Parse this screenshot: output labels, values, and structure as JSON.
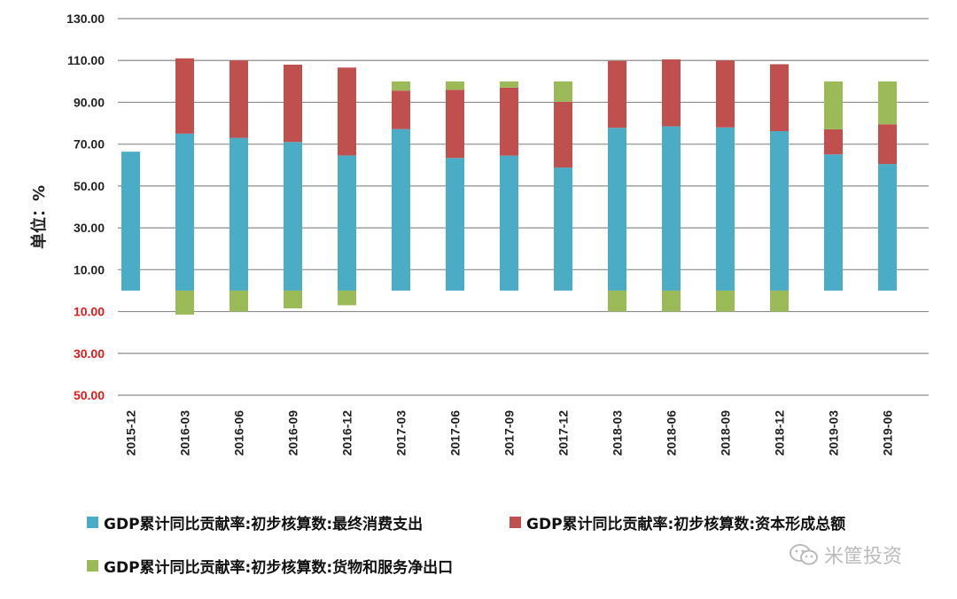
{
  "chart_data": {
    "type": "bar",
    "stacked": true,
    "categories": [
      "2015-12",
      "2016-03",
      "2016-06",
      "2016-09",
      "2016-12",
      "2017-03",
      "2017-06",
      "2017-09",
      "2017-12",
      "2018-03",
      "2018-06",
      "2018-09",
      "2018-12",
      "2019-03",
      "2019-06"
    ],
    "series": [
      {
        "name": "GDP累计同比贡献率:初步核算数:最终消费支出",
        "color": "#4bacc6",
        "values": [
          66.4,
          75.0,
          73.0,
          71.0,
          64.6,
          77.2,
          63.4,
          64.5,
          58.8,
          77.8,
          78.5,
          78.0,
          76.2,
          65.1,
          60.5
        ]
      },
      {
        "name": "GDP累计同比贡献率:初步核算数:资本形成总额",
        "color": "#c0504d",
        "values": [
          0.0,
          36.0,
          37.0,
          37.0,
          42.0,
          18.4,
          32.6,
          32.5,
          31.5,
          32.0,
          32.0,
          32.0,
          32.0,
          12.0,
          19.0
        ]
      },
      {
        "name": "GDP累计同比贡献率:初步核算数:货物和服务净出口",
        "color": "#9bbb59",
        "values": [
          0.0,
          -11.5,
          -10.0,
          -8.5,
          -7.0,
          4.4,
          4.0,
          3.0,
          9.7,
          -10.0,
          -10.0,
          -10.0,
          -10.0,
          22.9,
          20.5
        ]
      }
    ],
    "ylim": [
      -50,
      130
    ],
    "yticks": [
      {
        "label": "130.00",
        "value": 130,
        "color": "#222222"
      },
      {
        "label": "110.00",
        "value": 110,
        "color": "#222222"
      },
      {
        "label": "90.00",
        "value": 90,
        "color": "#222222"
      },
      {
        "label": "70.00",
        "value": 70,
        "color": "#222222"
      },
      {
        "label": "50.00",
        "value": 50,
        "color": "#222222"
      },
      {
        "label": "30.00",
        "value": 30,
        "color": "#222222"
      },
      {
        "label": "10.00",
        "value": 10,
        "color": "#222222"
      },
      {
        "label": "10.00",
        "value": -10,
        "color": "#e11b1b"
      },
      {
        "label": "30.00",
        "value": -30,
        "color": "#e11b1b"
      },
      {
        "label": "50.00",
        "value": -50,
        "color": "#e11b1b"
      }
    ],
    "ylabel": "单位：%",
    "xlabel": "",
    "title": "",
    "grid": true,
    "legend_position": "bottom"
  },
  "watermark": {
    "text": "米筐投资",
    "icon": "wechat-icon"
  }
}
